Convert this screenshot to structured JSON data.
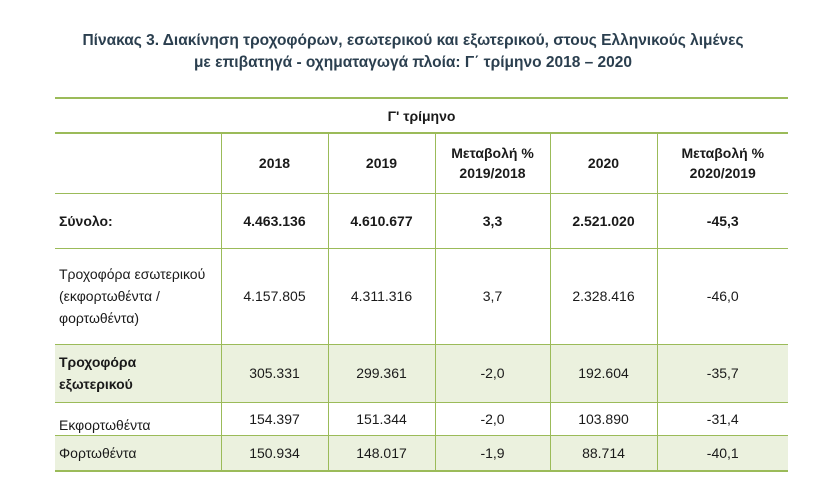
{
  "title": {
    "line1": "Πίνακας 3. Διακίνηση τροχοφόρων, εσωτερικού και εξωτερικού, στους Ελληνικούς λιμένες",
    "line2": "με επιβατηγά - οχηματαγωγά πλοία: Γ΄ τρίμηνο 2018 – 2020"
  },
  "table": {
    "period": "Γ' τρίμηνο",
    "headers": [
      "2018",
      "2019",
      "Μεταβολή % 2019/2018",
      "2020",
      "Μεταβολή % 2020/2019"
    ],
    "rows": [
      {
        "label": "Σύνολο:",
        "values": [
          "4.463.136",
          "4.610.677",
          "3,3",
          "2.521.020",
          "-45,3"
        ]
      },
      {
        "label": "Τροχοφόρα εσωτερικού (εκφορτωθέντα / φορτωθέντα)",
        "values": [
          "4.157.805",
          "4.311.316",
          "3,7",
          "2.328.416",
          "-46,0"
        ]
      },
      {
        "label": "Τροχοφόρα εξωτερικού",
        "values": [
          "305.331",
          "299.361",
          "-2,0",
          "192.604",
          "-35,7"
        ]
      },
      {
        "label": "Εκφορτωθέντα",
        "values": [
          "154.397",
          "151.344",
          "-2,0",
          "103.890",
          "-31,4"
        ]
      },
      {
        "label": "Φορτωθέντα",
        "values": [
          "150.934",
          "148.017",
          "-1,9",
          "88.714",
          "-40,1"
        ]
      }
    ]
  }
}
